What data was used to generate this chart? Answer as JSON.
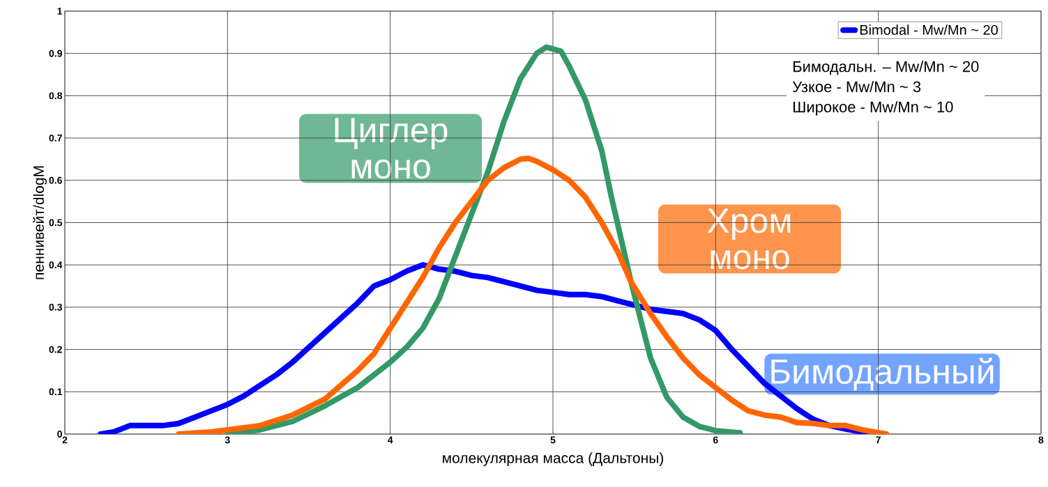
{
  "chart_data": {
    "type": "line",
    "xlabel": "молекулярная масса (Дальтоны)",
    "ylabel": "пеннивейт/dlogM",
    "xlim": [
      2,
      8
    ],
    "xticks": [
      2,
      3,
      4,
      5,
      6,
      7,
      8
    ],
    "ylim": [
      0,
      1
    ],
    "yticks": [
      0,
      0.1,
      0.2,
      0.3,
      0.4,
      0.5,
      0.6,
      0.7,
      0.8,
      0.9,
      1
    ],
    "grid": true,
    "legend": "top right",
    "series": [
      {
        "name": "Bimodal - Mw/Mn ~ 20",
        "color": "#0000ff",
        "x": [
          2.22,
          2.3,
          2.4,
          2.5,
          2.6,
          2.7,
          2.8,
          2.9,
          3.0,
          3.1,
          3.2,
          3.3,
          3.4,
          3.5,
          3.6,
          3.7,
          3.8,
          3.9,
          4.0,
          4.1,
          4.2,
          4.3,
          4.4,
          4.5,
          4.6,
          4.7,
          4.8,
          4.9,
          5.0,
          5.1,
          5.2,
          5.3,
          5.4,
          5.5,
          5.6,
          5.7,
          5.8,
          5.9,
          6.0,
          6.1,
          6.2,
          6.3,
          6.4,
          6.5,
          6.6,
          6.7,
          6.8,
          6.9,
          7.0
        ],
        "values": [
          0,
          0.005,
          0.02,
          0.02,
          0.02,
          0.025,
          0.04,
          0.055,
          0.07,
          0.09,
          0.115,
          0.14,
          0.17,
          0.205,
          0.24,
          0.275,
          0.31,
          0.35,
          0.365,
          0.385,
          0.4,
          0.39,
          0.385,
          0.375,
          0.37,
          0.36,
          0.35,
          0.34,
          0.335,
          0.33,
          0.33,
          0.325,
          0.315,
          0.305,
          0.295,
          0.29,
          0.285,
          0.27,
          0.245,
          0.2,
          0.16,
          0.12,
          0.09,
          0.06,
          0.035,
          0.02,
          0.012,
          0.005,
          0
        ]
      },
      {
        "color": "#339966",
        "x": [
          3.0,
          3.2,
          3.4,
          3.6,
          3.8,
          4.0,
          4.1,
          4.2,
          4.3,
          4.4,
          4.5,
          4.6,
          4.7,
          4.8,
          4.9,
          4.96,
          5.05,
          5.1,
          5.2,
          5.3,
          5.36,
          5.48,
          5.6,
          5.7,
          5.8,
          5.9,
          6.0,
          6.15
        ],
        "values": [
          0,
          0.01,
          0.03,
          0.067,
          0.11,
          0.17,
          0.205,
          0.25,
          0.32,
          0.42,
          0.52,
          0.62,
          0.74,
          0.84,
          0.9,
          0.915,
          0.905,
          0.87,
          0.79,
          0.67,
          0.56,
          0.36,
          0.18,
          0.087,
          0.04,
          0.018,
          0.008,
          0.003
        ]
      },
      {
        "color": "#ff6600",
        "x": [
          2.7,
          2.9,
          3.0,
          3.2,
          3.4,
          3.6,
          3.8,
          3.9,
          4.0,
          4.1,
          4.2,
          4.3,
          4.4,
          4.5,
          4.6,
          4.7,
          4.8,
          4.85,
          4.9,
          5.0,
          5.1,
          5.2,
          5.3,
          5.4,
          5.48,
          5.6,
          5.7,
          5.8,
          5.9,
          6.0,
          6.1,
          6.2,
          6.3,
          6.4,
          6.5,
          6.6,
          6.7,
          6.8,
          6.9,
          7.05
        ],
        "values": [
          0,
          0.005,
          0.01,
          0.02,
          0.045,
          0.083,
          0.15,
          0.19,
          0.25,
          0.31,
          0.37,
          0.44,
          0.5,
          0.55,
          0.6,
          0.63,
          0.65,
          0.652,
          0.645,
          0.625,
          0.6,
          0.56,
          0.5,
          0.43,
          0.36,
          0.285,
          0.23,
          0.18,
          0.14,
          0.11,
          0.08,
          0.055,
          0.045,
          0.04,
          0.027,
          0.025,
          0.02,
          0.02,
          0.01,
          0
        ]
      }
    ],
    "annotations": [
      "Бимодальный",
      "Циглер моно",
      "Хром моно",
      "Бимодальн. – Mw/Mn ~ 20",
      "Узкое - Mw/Mn ~ 3",
      "Широкое - Mw/Mn ~ 10"
    ]
  }
}
